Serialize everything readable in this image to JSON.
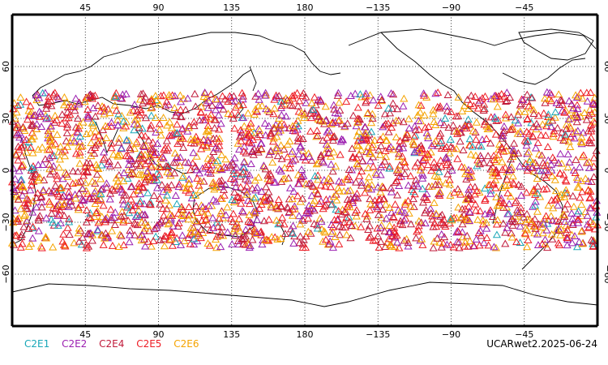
{
  "map": {
    "projection": "cylindrical equidistant",
    "central_longitude": 180,
    "lon_range_display": [
      0,
      360
    ],
    "lat_range": [
      -90,
      90
    ],
    "grid": true,
    "grid_style": "dotted",
    "lon_tick_values": [
      45,
      90,
      135,
      180,
      225,
      270,
      315
    ],
    "lon_tick_labels": [
      "45",
      "90",
      "135",
      "180",
      "−135",
      "−90",
      "−45"
    ],
    "lat_tick_values": [
      60,
      30,
      0,
      -30,
      -60
    ],
    "lat_tick_labels": [
      "60",
      "30",
      "0",
      "−30",
      "−60"
    ],
    "marker_shape": "open-triangle",
    "observation_band_lat": [
      -45,
      45
    ]
  },
  "legend": {
    "items": [
      {
        "label": "C2E1",
        "color": "#19a7b8"
      },
      {
        "label": "C2E2",
        "color": "#9b1fb0"
      },
      {
        "label": "C2E4",
        "color": "#c01a3a"
      },
      {
        "label": "C2E5",
        "color": "#ee1c24"
      },
      {
        "label": "C2E6",
        "color": "#f5a300"
      }
    ]
  },
  "stamp": {
    "text": "UCARwet2.2025-06-24"
  }
}
